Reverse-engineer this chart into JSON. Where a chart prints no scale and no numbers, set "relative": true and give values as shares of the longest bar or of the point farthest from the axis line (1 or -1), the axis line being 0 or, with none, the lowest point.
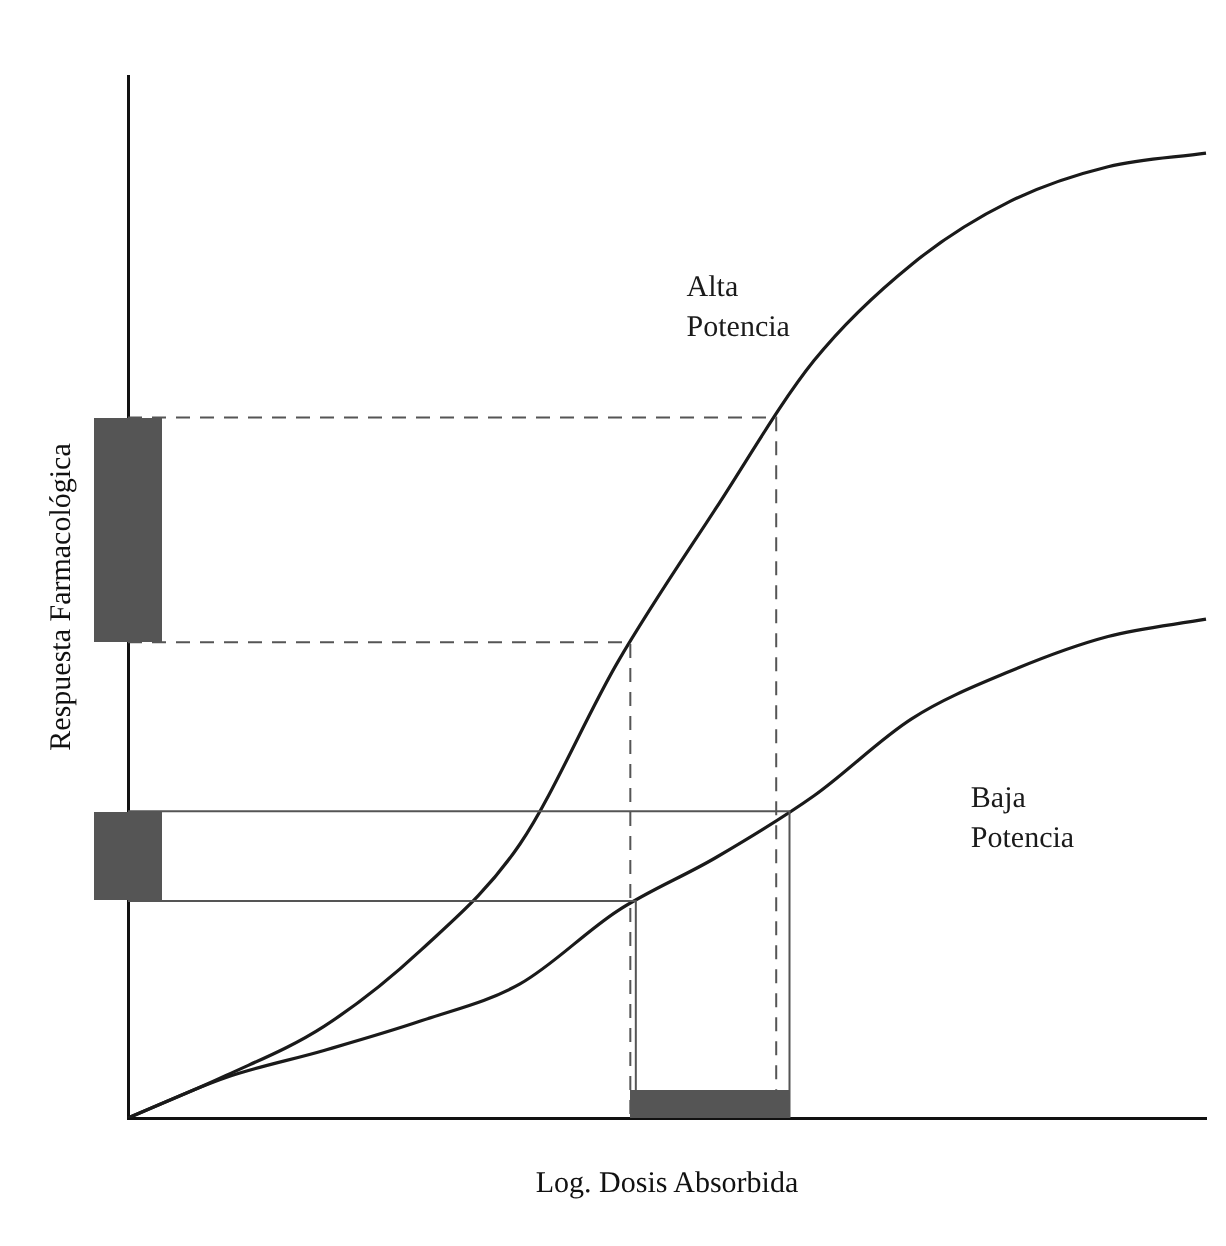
{
  "chart_data": {
    "type": "line",
    "relative": true,
    "xlabel": "Log. Dosis Absorbida",
    "ylabel": "Respuesta Farmacológica",
    "categories": [
      null,
      null,
      null,
      null,
      null,
      null,
      null,
      null,
      null,
      null,
      null,
      null
    ],
    "marker": "none",
    "grid": false,
    "legend": false,
    "series": [
      {
        "name": "Alta Potencia",
        "color": "#1a1a1a",
        "values": [
          0,
          0.044,
          0.095,
          0.175,
          0.284,
          0.473,
          0.632,
          0.785,
          0.885,
          0.95,
          0.986,
          1
        ]
      },
      {
        "name": "Baja Potencia",
        "color": "#1a1a1a",
        "values": [
          0,
          0.042,
          0.07,
          0.101,
          0.139,
          0.215,
          0.27,
          0.334,
          0.414,
          0.463,
          0.499,
          0.517
        ]
      }
    ],
    "ref_lines": [
      {
        "axis": "y",
        "value": 0.726,
        "color": "#555555",
        "line_style": "dashed"
      },
      {
        "axis": "y",
        "value": 0.493,
        "color": "#555555",
        "line_style": "dashed"
      },
      {
        "axis": "y",
        "value": 0.318,
        "color": "#555555",
        "line_style": "solid"
      },
      {
        "axis": "y",
        "value": 0.225,
        "color": "#555555",
        "line_style": "solid"
      }
    ]
  }
}
